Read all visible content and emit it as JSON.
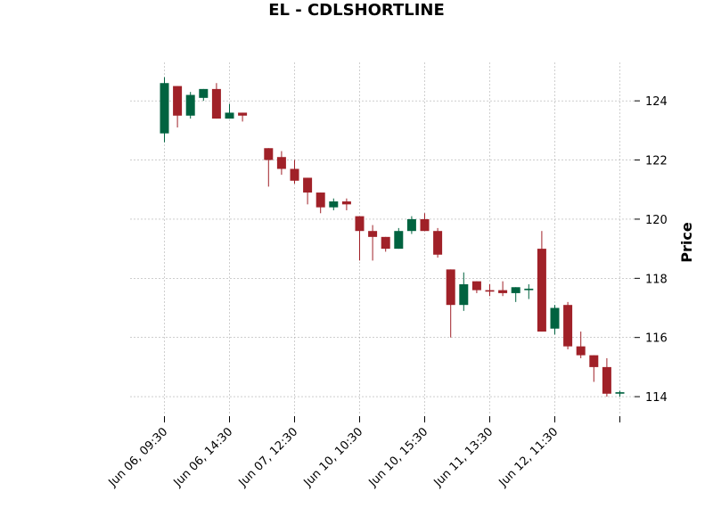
{
  "chart_data": {
    "type": "candlestick",
    "title": "EL - CDLSHORTLINE",
    "xlabel": "",
    "ylabel": "Price",
    "ylim": [
      113.4,
      125.3
    ],
    "yticks": [
      114,
      116,
      118,
      120,
      122,
      124
    ],
    "grid": true,
    "x_tick_labels": [
      {
        "index": 0,
        "label": "Jun 06, 09:30"
      },
      {
        "index": 5,
        "label": "Jun 06, 14:30"
      },
      {
        "index": 10,
        "label": "Jun 07, 12:30"
      },
      {
        "index": 15,
        "label": "Jun 10, 10:30"
      },
      {
        "index": 20,
        "label": "Jun 10, 15:30"
      },
      {
        "index": 25,
        "label": "Jun 11, 13:30"
      },
      {
        "index": 30,
        "label": "Jun 12, 11:30"
      },
      {
        "index": 35,
        "label": ""
      }
    ],
    "colors": {
      "up": "#006340",
      "down": "#a02128",
      "grid": "#b0b0b0"
    },
    "candles": [
      {
        "o": 122.9,
        "h": 124.8,
        "l": 122.6,
        "c": 124.6
      },
      {
        "o": 124.5,
        "h": 124.5,
        "l": 123.1,
        "c": 123.5
      },
      {
        "o": 123.5,
        "h": 124.3,
        "l": 123.4,
        "c": 124.2
      },
      {
        "o": 124.1,
        "h": 124.4,
        "l": 124.0,
        "c": 124.4
      },
      {
        "o": 124.4,
        "h": 124.6,
        "l": 123.4,
        "c": 123.4
      },
      {
        "o": 123.4,
        "h": 123.9,
        "l": 123.4,
        "c": 123.6
      },
      {
        "o": 123.6,
        "h": 123.6,
        "l": 123.3,
        "c": 123.5
      },
      {
        "o": null,
        "h": null,
        "l": null,
        "c": null
      },
      {
        "o": 122.4,
        "h": 122.4,
        "l": 121.1,
        "c": 122.0
      },
      {
        "o": 122.1,
        "h": 122.3,
        "l": 121.5,
        "c": 121.7
      },
      {
        "o": 121.7,
        "h": 122.0,
        "l": 121.2,
        "c": 121.3
      },
      {
        "o": 121.4,
        "h": 121.4,
        "l": 120.5,
        "c": 120.9
      },
      {
        "o": 120.9,
        "h": 120.9,
        "l": 120.2,
        "c": 120.4
      },
      {
        "o": 120.4,
        "h": 120.7,
        "l": 120.3,
        "c": 120.6
      },
      {
        "o": 120.6,
        "h": 120.7,
        "l": 120.3,
        "c": 120.5
      },
      {
        "o": 120.1,
        "h": 120.1,
        "l": 118.6,
        "c": 119.6
      },
      {
        "o": 119.6,
        "h": 119.8,
        "l": 118.6,
        "c": 119.4
      },
      {
        "o": 119.4,
        "h": 119.4,
        "l": 118.9,
        "c": 119.0
      },
      {
        "o": 119.0,
        "h": 119.7,
        "l": 119.0,
        "c": 119.6
      },
      {
        "o": 119.6,
        "h": 120.1,
        "l": 119.5,
        "c": 120.0
      },
      {
        "o": 120.0,
        "h": 120.2,
        "l": 119.6,
        "c": 119.6
      },
      {
        "o": 119.6,
        "h": 119.7,
        "l": 118.7,
        "c": 118.8
      },
      {
        "o": 118.3,
        "h": 118.3,
        "l": 116.0,
        "c": 117.1
      },
      {
        "o": 117.1,
        "h": 118.2,
        "l": 116.9,
        "c": 117.8
      },
      {
        "o": 117.9,
        "h": 117.9,
        "l": 117.5,
        "c": 117.6
      },
      {
        "o": 117.6,
        "h": 117.8,
        "l": 117.4,
        "c": 117.55
      },
      {
        "o": 117.6,
        "h": 117.9,
        "l": 117.4,
        "c": 117.5
      },
      {
        "o": 117.5,
        "h": 117.7,
        "l": 117.2,
        "c": 117.7
      },
      {
        "o": 117.6,
        "h": 117.8,
        "l": 117.3,
        "c": 117.65
      },
      {
        "o": 119.0,
        "h": 119.6,
        "l": 116.2,
        "c": 116.2
      },
      {
        "o": 116.3,
        "h": 117.1,
        "l": 116.1,
        "c": 117.0
      },
      {
        "o": 117.1,
        "h": 117.2,
        "l": 115.6,
        "c": 115.7
      },
      {
        "o": 115.7,
        "h": 116.2,
        "l": 115.3,
        "c": 115.4
      },
      {
        "o": 115.4,
        "h": 115.4,
        "l": 114.5,
        "c": 115.0
      },
      {
        "o": 115.0,
        "h": 115.3,
        "l": 114.0,
        "c": 114.1
      },
      {
        "o": 114.1,
        "h": 114.2,
        "l": 114.0,
        "c": 114.15
      }
    ]
  }
}
